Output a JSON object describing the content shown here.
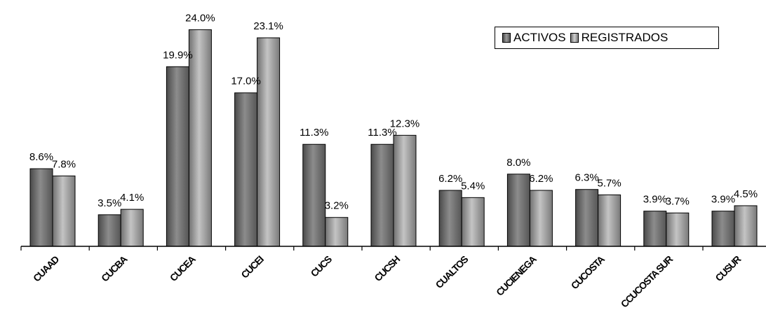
{
  "chart_data": {
    "type": "bar",
    "categories": [
      "CUAAD",
      "CUCBA",
      "CUCEA",
      "CUCEI",
      "CUCS",
      "CUCSH",
      "CUALTOS",
      "CUCIENEGA",
      "CUCOSTA",
      "CCUCOSTA SUR",
      "CUSUR"
    ],
    "series": [
      {
        "name": "ACTIVOS",
        "values": [
          8.6,
          3.5,
          19.9,
          17.0,
          11.3,
          11.3,
          6.2,
          8.0,
          6.3,
          3.9,
          3.9
        ],
        "labels": [
          "8.6%",
          "3.5%",
          "19.9%",
          "17.0%",
          "11.3%",
          "11.3%",
          "6.2%",
          "8.0%",
          "6.3%",
          "3.9%",
          "3.9%"
        ],
        "color": "#6e6e6e"
      },
      {
        "name": "REGISTRADOS",
        "values": [
          7.8,
          4.1,
          24.0,
          23.1,
          3.2,
          12.3,
          5.4,
          6.2,
          5.7,
          3.7,
          4.5
        ],
        "labels": [
          "7.8%",
          "4.1%",
          "24.0%",
          "23.1%",
          "3.2%",
          "12.3%",
          "5.4%",
          "6.2%",
          "5.7%",
          "3.7%",
          "4.5%"
        ],
        "color": "#a0a0a0"
      }
    ],
    "ylim": [
      0,
      25
    ],
    "grid": false,
    "legend_position": "top-right"
  }
}
